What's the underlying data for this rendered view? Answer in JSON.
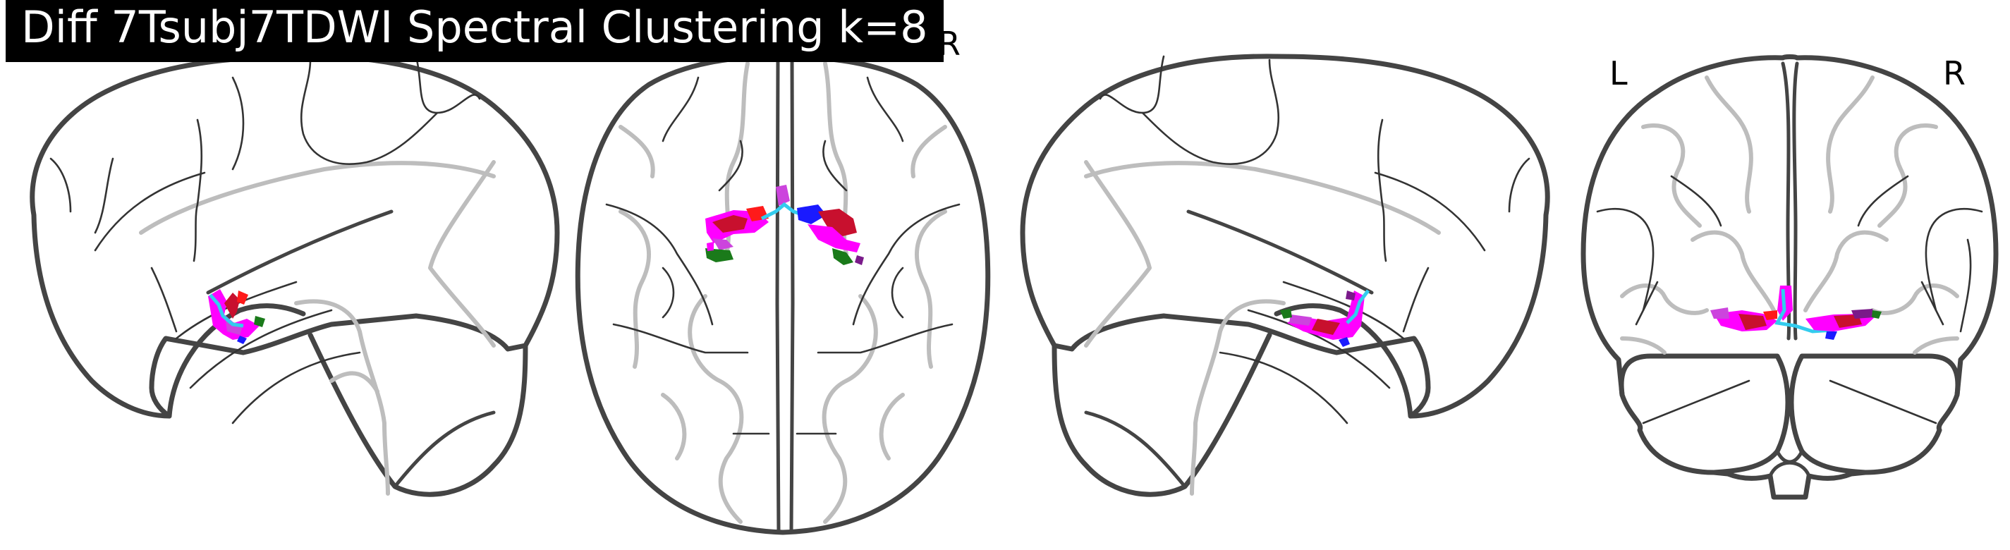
{
  "title": "Diff 7Tsubj7TDWI Spectral Clustering k=8",
  "views": {
    "sagittal_left": {
      "name": "sagittal-left"
    },
    "axial": {
      "name": "axial",
      "hidden_right_label": "R"
    },
    "sagittal_right": {
      "name": "sagittal-right"
    },
    "coronal": {
      "name": "coronal",
      "left_label": "L",
      "right_label": "R"
    }
  },
  "cluster_colors": {
    "magenta": "#ff00ff",
    "violet": "#cc44dd",
    "crimson": "#c8102e",
    "red": "#ff1a1a",
    "green": "#1a7a1a",
    "blue": "#1a1aff",
    "cyan": "#33ccee",
    "purple": "#7a1a8a"
  }
}
